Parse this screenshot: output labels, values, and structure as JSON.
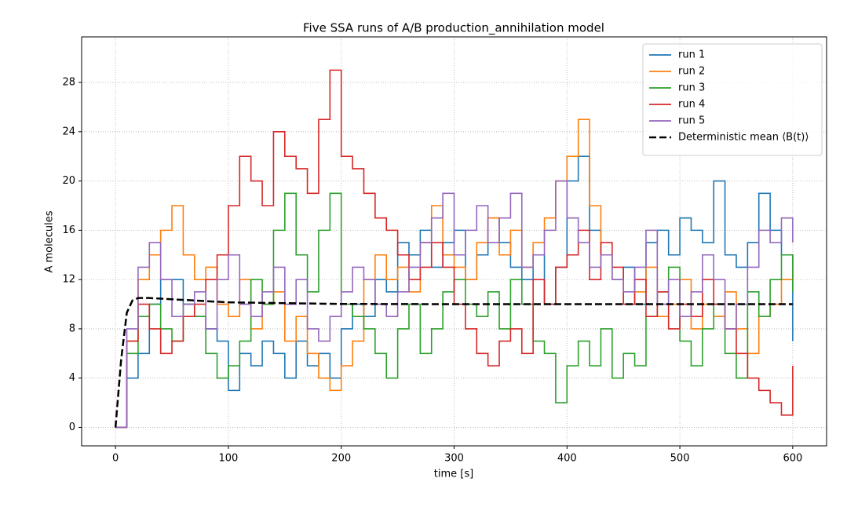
{
  "chart_data": {
    "type": "line",
    "title": "Five SSA runs of A/B production_annihilation model",
    "x_label": "time [s]",
    "y_label": "A molecules",
    "xlim": [
      -30,
      630
    ],
    "ylim": [
      -1.5,
      31.7
    ],
    "xticks": [
      0,
      100,
      200,
      300,
      400,
      500,
      600
    ],
    "yticks": [
      0,
      4,
      8,
      12,
      16,
      20,
      24,
      28
    ],
    "grid": true,
    "legend": "upper right",
    "drawstyle": "steps-post",
    "x": [
      0,
      10,
      20,
      30,
      40,
      50,
      60,
      70,
      80,
      90,
      100,
      110,
      120,
      130,
      140,
      150,
      160,
      170,
      180,
      190,
      200,
      210,
      220,
      230,
      240,
      250,
      260,
      270,
      280,
      290,
      300,
      310,
      320,
      330,
      340,
      350,
      360,
      370,
      380,
      390,
      400,
      410,
      420,
      430,
      440,
      450,
      460,
      470,
      480,
      490,
      500,
      510,
      520,
      530,
      540,
      550,
      560,
      570,
      580,
      590,
      600
    ],
    "series": [
      {
        "name": "run 1",
        "color": "#1f77b4",
        "values": [
          0,
          4,
          6,
          10,
          12,
          12,
          10,
          9,
          8,
          7,
          3,
          6,
          5,
          7,
          6,
          4,
          7,
          5,
          6,
          4,
          8,
          10,
          9,
          12,
          11,
          15,
          14,
          16,
          13,
          15,
          16,
          12,
          14,
          17,
          15,
          13,
          12,
          14,
          10,
          13,
          20,
          22,
          16,
          14,
          12,
          13,
          10,
          15,
          16,
          14,
          17,
          16,
          15,
          20,
          14,
          13,
          15,
          19,
          16,
          14,
          7
        ]
      },
      {
        "name": "run 2",
        "color": "#ff7f0e",
        "values": [
          0,
          7,
          12,
          14,
          16,
          18,
          14,
          12,
          13,
          10,
          9,
          12,
          8,
          10,
          11,
          7,
          9,
          6,
          4,
          3,
          5,
          7,
          12,
          14,
          12,
          13,
          11,
          15,
          18,
          14,
          13,
          12,
          15,
          17,
          14,
          16,
          13,
          15,
          17,
          20,
          22,
          25,
          18,
          14,
          12,
          10,
          11,
          13,
          9,
          10,
          12,
          8,
          10,
          9,
          11,
          8,
          6,
          9,
          10,
          12,
          13
        ]
      },
      {
        "name": "run 3",
        "color": "#2ca02c",
        "values": [
          0,
          6,
          9,
          10,
          8,
          7,
          10,
          9,
          6,
          4,
          5,
          7,
          12,
          10,
          16,
          19,
          14,
          11,
          16,
          19,
          10,
          9,
          8,
          6,
          4,
          8,
          10,
          6,
          8,
          11,
          12,
          10,
          9,
          11,
          8,
          12,
          10,
          7,
          6,
          2,
          5,
          7,
          5,
          8,
          4,
          6,
          5,
          9,
          11,
          13,
          7,
          5,
          8,
          10,
          6,
          4,
          11,
          9,
          12,
          14,
          11
        ]
      },
      {
        "name": "run 4",
        "color": "#d62728",
        "values": [
          0,
          7,
          10,
          8,
          6,
          7,
          9,
          10,
          12,
          14,
          18,
          22,
          20,
          18,
          24,
          22,
          21,
          19,
          25,
          29,
          22,
          21,
          19,
          17,
          16,
          14,
          12,
          13,
          15,
          13,
          10,
          8,
          6,
          5,
          7,
          8,
          6,
          12,
          10,
          13,
          14,
          16,
          12,
          15,
          13,
          10,
          12,
          9,
          11,
          8,
          10,
          9,
          12,
          10,
          8,
          6,
          4,
          3,
          2,
          1,
          5
        ]
      },
      {
        "name": "run 5",
        "color": "#9467bd",
        "values": [
          0,
          8,
          13,
          15,
          12,
          9,
          10,
          11,
          8,
          12,
          14,
          10,
          9,
          11,
          13,
          10,
          12,
          8,
          7,
          9,
          11,
          13,
          12,
          10,
          9,
          11,
          13,
          15,
          17,
          19,
          14,
          16,
          18,
          15,
          17,
          19,
          13,
          14,
          16,
          20,
          17,
          15,
          13,
          14,
          12,
          11,
          13,
          16,
          10,
          12,
          9,
          11,
          14,
          12,
          8,
          10,
          13,
          16,
          15,
          17,
          15
        ]
      },
      {
        "name": "Deterministic mean ⟨B(t)⟩",
        "color": "#000000",
        "dashed": true,
        "x": [
          0,
          5,
          10,
          15,
          20,
          30,
          50,
          100,
          200,
          300,
          600
        ],
        "values": [
          0,
          5.5,
          9.3,
          10.3,
          10.5,
          10.5,
          10.4,
          10.15,
          10.02,
          10,
          10
        ]
      }
    ]
  }
}
